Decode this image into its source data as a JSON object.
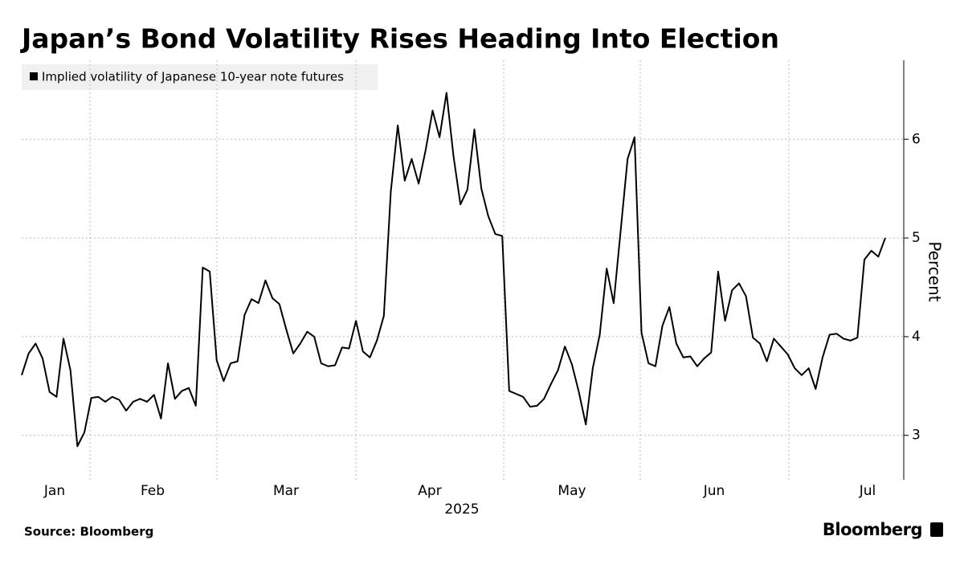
{
  "chart_data": {
    "type": "line",
    "title": "Japan’s Bond Volatility Rises Heading Into Election",
    "source": "Source: Bloomberg",
    "brand": "Bloomberg",
    "y_axis_label": "Percent",
    "x_labels": [
      "Jan",
      "Feb",
      "Mar",
      "Apr",
      "May",
      "Jun",
      "Jul"
    ],
    "x_year_label": "2025",
    "ylim": [
      2.55,
      6.8
    ],
    "yticks": [
      3,
      4,
      5,
      6
    ],
    "grid": true,
    "y_axis_side": "right",
    "legend": "top-left",
    "series": [
      {
        "name": "Implied volatility of Japanese 10-year note futures",
        "color": "#000000",
        "values": [
          3.61,
          3.83,
          3.93,
          3.78,
          3.44,
          3.39,
          3.98,
          3.66,
          2.89,
          3.03,
          3.38,
          3.39,
          3.34,
          3.39,
          3.36,
          3.25,
          3.34,
          3.37,
          3.34,
          3.41,
          3.17,
          3.73,
          3.37,
          3.45,
          3.48,
          3.3,
          4.7,
          4.66,
          3.76,
          3.55,
          3.73,
          3.75,
          4.22,
          4.38,
          4.34,
          4.57,
          4.39,
          4.33,
          4.07,
          3.83,
          3.93,
          4.05,
          4.0,
          3.73,
          3.7,
          3.71,
          3.89,
          3.88,
          4.16,
          3.85,
          3.79,
          3.96,
          4.21,
          5.47,
          6.14,
          5.58,
          5.8,
          5.55,
          5.89,
          6.29,
          6.02,
          6.47,
          5.83,
          5.34,
          5.49,
          6.1,
          5.5,
          5.22,
          5.04,
          5.02,
          3.45,
          3.42,
          3.39,
          3.29,
          3.3,
          3.37,
          3.52,
          3.66,
          3.9,
          3.72,
          3.44,
          3.11,
          3.68,
          4.02,
          4.69,
          4.34,
          5.07,
          5.8,
          6.02,
          4.04,
          3.73,
          3.7,
          4.11,
          4.3,
          3.93,
          3.79,
          3.8,
          3.7,
          3.78,
          3.84,
          4.66,
          4.16,
          4.47,
          4.54,
          4.41,
          3.99,
          3.93,
          3.75,
          3.98,
          3.9,
          3.82,
          3.68,
          3.61,
          3.68,
          3.47,
          3.79,
          4.02,
          4.03,
          3.98,
          3.96,
          3.99,
          4.78,
          4.87,
          4.81,
          5.0
        ]
      }
    ]
  }
}
